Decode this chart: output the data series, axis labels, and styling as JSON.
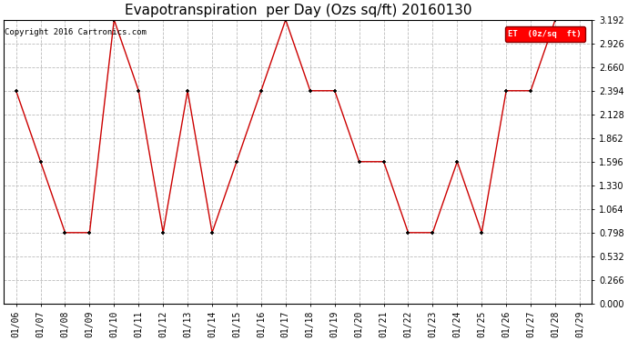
{
  "title": "Evapotranspiration  per Day (Ozs sq/ft) 20160130",
  "copyright": "Copyright 2016 Cartronics.com",
  "legend_label": "ET  (0z/sq  ft)",
  "dates": [
    "01/06",
    "01/07",
    "01/08",
    "01/09",
    "01/10",
    "01/11",
    "01/12",
    "01/13",
    "01/14",
    "01/15",
    "01/16",
    "01/17",
    "01/18",
    "01/19",
    "01/20",
    "01/21",
    "01/22",
    "01/23",
    "01/24",
    "01/25",
    "01/26",
    "01/27",
    "01/28",
    "01/29"
  ],
  "values": [
    2.394,
    1.596,
    0.798,
    0.798,
    3.192,
    2.394,
    0.798,
    2.394,
    0.798,
    1.596,
    2.394,
    3.192,
    2.394,
    2.394,
    1.596,
    1.596,
    0.798,
    0.798,
    1.596,
    0.798,
    2.394,
    2.394,
    3.192,
    null
  ],
  "line_color": "#cc0000",
  "marker_color": "#000000",
  "marker_size": 3,
  "ylim": [
    0.0,
    3.192
  ],
  "yticks": [
    0.0,
    0.266,
    0.532,
    0.798,
    1.064,
    1.33,
    1.596,
    1.862,
    2.128,
    2.394,
    2.66,
    2.926,
    3.192
  ],
  "background_color": "#ffffff",
  "grid_color": "#bbbbbb",
  "title_fontsize": 11,
  "tick_fontsize": 7,
  "copyright_fontsize": 6.5
}
